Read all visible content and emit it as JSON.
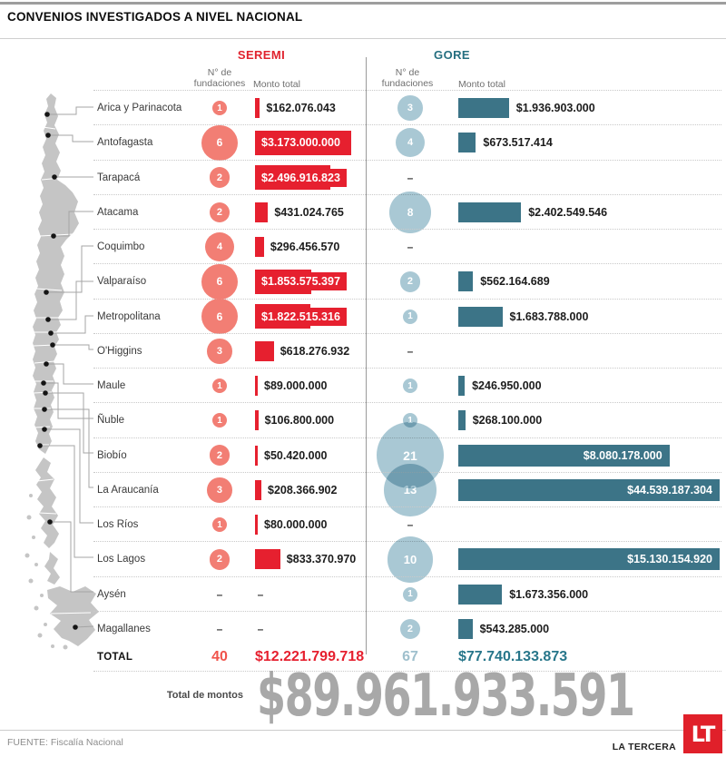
{
  "header": {
    "title": "CONVENIOS INVESTIGADOS A NIVEL NACIONAL"
  },
  "columns": {
    "seremi": {
      "label": "SEREMI",
      "fundaciones": "N° de fundaciones",
      "monto": "Monto total"
    },
    "gore": {
      "label": "GORE",
      "fundaciones": "N° de fundaciones",
      "monto": "Monto total"
    }
  },
  "rows": [
    {
      "region": "Arica y Parinacota",
      "s_count": "1",
      "s_amount": "$162.076.043",
      "s_n": 1,
      "s_val": 162076043,
      "s_inside": false,
      "g_count": "3",
      "g_amount": "$1.936.903.000",
      "g_n": 3,
      "g_val": 1936903000,
      "g_inside": false
    },
    {
      "region": "Antofagasta",
      "s_count": "6",
      "s_amount": "$3.173.000.000",
      "s_n": 6,
      "s_val": 3173000000,
      "s_inside": true,
      "g_count": "4",
      "g_amount": "$673.517.414",
      "g_n": 4,
      "g_val": 673517414,
      "g_inside": false
    },
    {
      "region": "Tarapacá",
      "s_count": "2",
      "s_amount": "$2.496.916.823",
      "s_n": 2,
      "s_val": 2496916823,
      "s_inside": true,
      "g_count": "–",
      "g_amount": "",
      "g_n": null,
      "g_val": null,
      "g_inside": false
    },
    {
      "region": "Atacama",
      "s_count": "2",
      "s_amount": "$431.024.765",
      "s_n": 2,
      "s_val": 431024765,
      "s_inside": false,
      "g_count": "8",
      "g_amount": "$2.402.549.546",
      "g_n": 8,
      "g_val": 2402549546,
      "g_inside": false
    },
    {
      "region": "Coquimbo",
      "s_count": "4",
      "s_amount": "$296.456.570",
      "s_n": 4,
      "s_val": 296456570,
      "s_inside": false,
      "g_count": "–",
      "g_amount": "",
      "g_n": null,
      "g_val": null,
      "g_inside": false
    },
    {
      "region": "Valparaíso",
      "s_count": "6",
      "s_amount": "$1.853.575.397",
      "s_n": 6,
      "s_val": 1853575397,
      "s_inside": true,
      "g_count": "2",
      "g_amount": "$562.164.689",
      "g_n": 2,
      "g_val": 562164689,
      "g_inside": false
    },
    {
      "region": "Metropolitana",
      "s_count": "6",
      "s_amount": "$1.822.515.316",
      "s_n": 6,
      "s_val": 1822515316,
      "s_inside": true,
      "g_count": "1",
      "g_amount": "$1.683.788.000",
      "g_n": 1,
      "g_val": 1683788000,
      "g_inside": false
    },
    {
      "region": "O'Higgins",
      "s_count": "3",
      "s_amount": "$618.276.932",
      "s_n": 3,
      "s_val": 618276932,
      "s_inside": false,
      "g_count": "–",
      "g_amount": "",
      "g_n": null,
      "g_val": null,
      "g_inside": false
    },
    {
      "region": "Maule",
      "s_count": "1",
      "s_amount": "$89.000.000",
      "s_n": 1,
      "s_val": 89000000,
      "s_inside": false,
      "g_count": "1",
      "g_amount": "$246.950.000",
      "g_n": 1,
      "g_val": 246950000,
      "g_inside": false
    },
    {
      "region": "Ñuble",
      "s_count": "1",
      "s_amount": "$106.800.000",
      "s_n": 1,
      "s_val": 106800000,
      "s_inside": false,
      "g_count": "1",
      "g_amount": "$268.100.000",
      "g_n": 1,
      "g_val": 268100000,
      "g_inside": false
    },
    {
      "region": "Biobío",
      "s_count": "2",
      "s_amount": "$50.420.000",
      "s_n": 2,
      "s_val": 50420000,
      "s_inside": false,
      "g_count": "21",
      "g_amount": "$8.080.178.000",
      "g_n": 21,
      "g_val": 8080178000,
      "g_inside": true
    },
    {
      "region": "La Araucanía",
      "s_count": "3",
      "s_amount": "$208.366.902",
      "s_n": 3,
      "s_val": 208366902,
      "s_inside": false,
      "g_count": "13",
      "g_amount": "$44.539.187.304",
      "g_n": 13,
      "g_val": 44539187304,
      "g_inside": true
    },
    {
      "region": "Los Ríos",
      "s_count": "1",
      "s_amount": "$80.000.000",
      "s_n": 1,
      "s_val": 80000000,
      "s_inside": false,
      "g_count": "–",
      "g_amount": "",
      "g_n": null,
      "g_val": null,
      "g_inside": false
    },
    {
      "region": "Los Lagos",
      "s_count": "2",
      "s_amount": "$833.370.970",
      "s_n": 2,
      "s_val": 833370970,
      "s_inside": false,
      "g_count": "10",
      "g_amount": "$15.130.154.920",
      "g_n": 10,
      "g_val": 15130154920,
      "g_inside": true
    },
    {
      "region": "Aysén",
      "s_count": "–",
      "s_amount": "–",
      "s_n": null,
      "s_val": null,
      "s_inside": false,
      "g_count": "1",
      "g_amount": "$1.673.356.000",
      "g_n": 1,
      "g_val": 1673356000,
      "g_inside": false
    },
    {
      "region": "Magallanes",
      "s_count": "–",
      "s_amount": "–",
      "s_n": null,
      "s_val": null,
      "s_inside": false,
      "g_count": "2",
      "g_amount": "$543.285.000",
      "g_n": 2,
      "g_val": 543285000,
      "g_inside": false
    }
  ],
  "totals": {
    "label": "TOTAL",
    "seremi_count": "40",
    "seremi_amount": "$12.221.799.718",
    "gore_count": "67",
    "gore_amount": "$77.740.133.873"
  },
  "grand_total": {
    "label": "Total de montos",
    "value": "$89.961.933.591"
  },
  "footer": {
    "source": "FUENTE:  Fiscalía Nacional",
    "brand": "LA TERCERA",
    "logo_text": "LT"
  },
  "colors": {
    "seremi_bar": "#e6202f",
    "seremi_bubble": "#f27e74",
    "seremi_header": "#e0232e",
    "gore_bar": "#3c7487",
    "gore_bubble": "#a9c8d4",
    "gore_header": "#256f80",
    "grand_total_gray": "#a8a8a8",
    "logo_red": "#e0202a",
    "map_gray": "#c5c5c5"
  },
  "chart_data": {
    "type": "bar",
    "title": "CONVENIOS INVESTIGADOS A NIVEL NACIONAL",
    "categories": [
      "Arica y Parinacota",
      "Antofagasta",
      "Tarapacá",
      "Atacama",
      "Coquimbo",
      "Valparaíso",
      "Metropolitana",
      "O'Higgins",
      "Maule",
      "Ñuble",
      "Biobío",
      "La Araucanía",
      "Los Ríos",
      "Los Lagos",
      "Aysén",
      "Magallanes"
    ],
    "series": [
      {
        "name": "SEREMI N° de fundaciones",
        "values": [
          1,
          6,
          2,
          2,
          4,
          6,
          6,
          3,
          1,
          1,
          2,
          3,
          1,
          2,
          null,
          null
        ]
      },
      {
        "name": "SEREMI Monto total (CLP)",
        "values": [
          162076043,
          3173000000,
          2496916823,
          431024765,
          296456570,
          1853575397,
          1822515316,
          618276932,
          89000000,
          106800000,
          50420000,
          208366902,
          80000000,
          833370970,
          null,
          null
        ]
      },
      {
        "name": "GORE N° de fundaciones",
        "values": [
          3,
          4,
          null,
          8,
          null,
          2,
          1,
          null,
          1,
          1,
          21,
          13,
          null,
          10,
          1,
          2
        ]
      },
      {
        "name": "GORE Monto total (CLP)",
        "values": [
          1936903000,
          673517414,
          null,
          2402549546,
          null,
          562164689,
          1683788000,
          null,
          246950000,
          268100000,
          8080178000,
          44539187304,
          null,
          15130154920,
          1673356000,
          543285000
        ]
      }
    ],
    "totals": {
      "seremi_fundaciones": 40,
      "seremi_monto_clp": 12221799718,
      "gore_fundaciones": 67,
      "gore_monto_clp": 77740133873,
      "total_montos_clp": 89961933591
    },
    "legend_position": "top",
    "grid": false,
    "orientation": "horizontal",
    "source": "Fiscalía Nacional"
  }
}
